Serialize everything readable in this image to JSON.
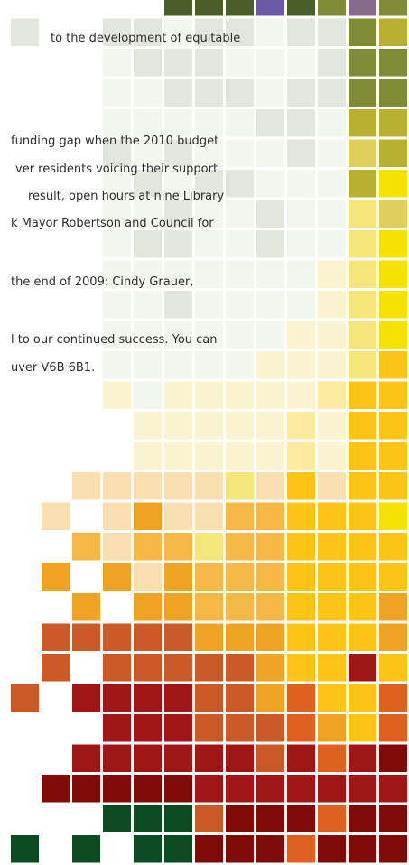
{
  "text_lines": [
    "to the development of equitable",
    "funding gap when the 2010 budget",
    "ver residents voicing their support",
    "result, open hours at nine Library",
    "k Mayor Robertson and Council for",
    "the end of 2009: Cindy Grauer,",
    "l to our continued success. You can",
    "uver V6B 6B1."
  ]
}
